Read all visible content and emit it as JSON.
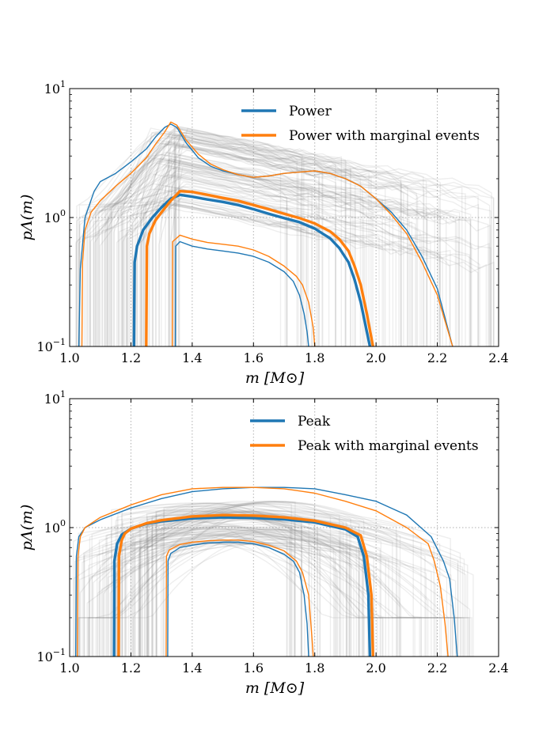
{
  "colors": {
    "blue": "#1f77b4",
    "orange": "#ff7f0e",
    "sample": "#7f7f7f",
    "grid": "#b0b0b0"
  },
  "chart_data": [
    {
      "type": "line",
      "xlabel": "m [M⊙]",
      "ylabel": "pΛ(m)",
      "xlim": [
        1.0,
        2.4
      ],
      "ylim": [
        0.1,
        10
      ],
      "yscale": "log",
      "grid": true,
      "legend_position": "top-right",
      "xticks": [
        "1.0",
        "1.2",
        "1.4",
        "1.6",
        "1.8",
        "2.0",
        "2.2",
        "2.4"
      ],
      "yticks": [
        {
          "base": "10",
          "exp": "1",
          "v": 10
        },
        {
          "base": "10",
          "exp": "0",
          "v": 1
        },
        {
          "base": "10",
          "exp": "−1",
          "v": 0.1
        }
      ],
      "series": [
        {
          "name": "Power",
          "color": "blue",
          "style": "median",
          "x": [
            1.21,
            1.212,
            1.22,
            1.24,
            1.27,
            1.3,
            1.33,
            1.36,
            1.4,
            1.45,
            1.5,
            1.55,
            1.6,
            1.65,
            1.7,
            1.75,
            1.8,
            1.85,
            1.88,
            1.91,
            1.93,
            1.95,
            1.97,
            1.98
          ],
          "y": [
            0.1,
            0.45,
            0.6,
            0.8,
            1.0,
            1.2,
            1.4,
            1.5,
            1.45,
            1.38,
            1.32,
            1.25,
            1.16,
            1.07,
            0.99,
            0.92,
            0.82,
            0.69,
            0.58,
            0.45,
            0.33,
            0.22,
            0.13,
            0.1
          ]
        },
        {
          "name": "Power with marginal events",
          "color": "orange",
          "style": "median",
          "x": [
            1.25,
            1.252,
            1.26,
            1.28,
            1.3,
            1.33,
            1.36,
            1.4,
            1.45,
            1.5,
            1.55,
            1.6,
            1.65,
            1.7,
            1.75,
            1.8,
            1.85,
            1.88,
            1.91,
            1.93,
            1.95,
            1.97,
            1.99
          ],
          "y": [
            0.1,
            0.6,
            0.75,
            0.95,
            1.1,
            1.35,
            1.6,
            1.58,
            1.5,
            1.42,
            1.35,
            1.25,
            1.16,
            1.07,
            0.99,
            0.9,
            0.78,
            0.68,
            0.55,
            0.42,
            0.3,
            0.18,
            0.1
          ]
        },
        {
          "name": "",
          "color": "blue",
          "style": "band",
          "x": [
            1.03,
            1.035,
            1.05,
            1.08,
            1.1,
            1.15,
            1.2,
            1.25,
            1.28,
            1.31,
            1.33,
            1.35,
            1.38,
            1.42,
            1.46,
            1.5,
            1.55,
            1.6,
            1.65,
            1.7,
            1.75,
            1.8,
            1.85,
            1.9,
            1.95,
            2.0,
            2.05,
            2.1,
            2.15,
            2.2,
            2.25
          ],
          "y": [
            0.1,
            0.4,
            1.0,
            1.6,
            1.9,
            2.2,
            2.7,
            3.4,
            4.2,
            5.0,
            5.3,
            5.0,
            3.8,
            2.9,
            2.5,
            2.3,
            2.15,
            2.05,
            2.1,
            2.2,
            2.25,
            2.3,
            2.2,
            2.0,
            1.75,
            1.4,
            1.1,
            0.8,
            0.5,
            0.28,
            0.1
          ]
        },
        {
          "name": "",
          "color": "orange",
          "style": "band",
          "x": [
            1.04,
            1.042,
            1.05,
            1.07,
            1.1,
            1.15,
            1.2,
            1.25,
            1.28,
            1.31,
            1.33,
            1.35,
            1.38,
            1.42,
            1.46,
            1.5,
            1.55,
            1.6,
            1.65,
            1.7,
            1.75,
            1.8,
            1.85,
            1.9,
            1.95,
            2.0,
            2.05,
            2.1,
            2.15,
            2.2,
            2.25
          ],
          "y": [
            0.1,
            0.45,
            0.8,
            1.1,
            1.35,
            1.75,
            2.2,
            2.9,
            3.7,
            4.6,
            5.5,
            5.2,
            4.0,
            3.1,
            2.6,
            2.35,
            2.15,
            2.05,
            2.1,
            2.2,
            2.25,
            2.3,
            2.2,
            2.0,
            1.75,
            1.4,
            1.05,
            0.75,
            0.45,
            0.25,
            0.1
          ]
        },
        {
          "name": "",
          "color": "blue",
          "style": "band",
          "x": [
            1.345,
            1.346,
            1.36,
            1.4,
            1.45,
            1.5,
            1.55,
            1.6,
            1.65,
            1.7,
            1.73,
            1.75,
            1.765,
            1.775,
            1.78
          ],
          "y": [
            0.1,
            0.6,
            0.65,
            0.6,
            0.57,
            0.55,
            0.53,
            0.5,
            0.45,
            0.38,
            0.32,
            0.25,
            0.18,
            0.13,
            0.1
          ]
        },
        {
          "name": "",
          "color": "orange",
          "style": "band",
          "x": [
            1.335,
            1.336,
            1.36,
            1.4,
            1.45,
            1.5,
            1.55,
            1.6,
            1.65,
            1.7,
            1.74,
            1.76,
            1.78,
            1.795,
            1.8
          ],
          "y": [
            0.1,
            0.65,
            0.73,
            0.68,
            0.64,
            0.62,
            0.6,
            0.56,
            0.5,
            0.42,
            0.35,
            0.3,
            0.22,
            0.14,
            0.1
          ]
        }
      ]
    },
    {
      "type": "line",
      "xlabel": "m [M⊙]",
      "ylabel": "pΛ(m)",
      "xlim": [
        1.0,
        2.4
      ],
      "ylim": [
        0.1,
        10
      ],
      "yscale": "log",
      "grid": true,
      "legend_position": "top-right",
      "xticks": [
        "1.0",
        "1.2",
        "1.4",
        "1.6",
        "1.8",
        "2.0",
        "2.2",
        "2.4"
      ],
      "yticks": [
        {
          "base": "10",
          "exp": "1",
          "v": 10
        },
        {
          "base": "10",
          "exp": "0",
          "v": 1
        },
        {
          "base": "10",
          "exp": "−1",
          "v": 0.1
        }
      ],
      "series": [
        {
          "name": "Peak",
          "color": "blue",
          "style": "median",
          "x": [
            1.145,
            1.146,
            1.155,
            1.17,
            1.2,
            1.25,
            1.3,
            1.4,
            1.5,
            1.6,
            1.7,
            1.8,
            1.9,
            1.94,
            1.96,
            1.975,
            1.98
          ],
          "y": [
            0.1,
            0.55,
            0.75,
            0.88,
            0.98,
            1.07,
            1.12,
            1.18,
            1.2,
            1.19,
            1.16,
            1.1,
            0.97,
            0.85,
            0.6,
            0.3,
            0.1
          ]
        },
        {
          "name": "Peak with marginal events",
          "color": "orange",
          "style": "median",
          "x": [
            1.16,
            1.161,
            1.17,
            1.18,
            1.2,
            1.25,
            1.3,
            1.4,
            1.5,
            1.6,
            1.7,
            1.8,
            1.9,
            1.95,
            1.97,
            1.985,
            1.99
          ],
          "y": [
            0.1,
            0.6,
            0.8,
            0.9,
            0.98,
            1.08,
            1.14,
            1.22,
            1.25,
            1.24,
            1.2,
            1.13,
            1.0,
            0.87,
            0.6,
            0.3,
            0.1
          ]
        },
        {
          "name": "",
          "color": "blue",
          "style": "band",
          "x": [
            1.02,
            1.022,
            1.03,
            1.05,
            1.1,
            1.2,
            1.3,
            1.4,
            1.5,
            1.6,
            1.7,
            1.8,
            1.9,
            2.0,
            2.1,
            2.18,
            2.22,
            2.24,
            2.255,
            2.265
          ],
          "y": [
            0.1,
            0.6,
            0.85,
            1.0,
            1.15,
            1.42,
            1.68,
            1.9,
            2.0,
            2.05,
            2.05,
            2.0,
            1.8,
            1.6,
            1.25,
            0.85,
            0.55,
            0.4,
            0.2,
            0.1
          ]
        },
        {
          "name": "",
          "color": "orange",
          "style": "band",
          "x": [
            1.025,
            1.027,
            1.035,
            1.05,
            1.1,
            1.2,
            1.3,
            1.4,
            1.5,
            1.6,
            1.7,
            1.8,
            1.9,
            2.0,
            2.1,
            2.17,
            2.19,
            2.21,
            2.225,
            2.235
          ],
          "y": [
            0.1,
            0.6,
            0.85,
            1.0,
            1.2,
            1.5,
            1.8,
            2.0,
            2.05,
            2.05,
            2.0,
            1.85,
            1.6,
            1.35,
            1.0,
            0.75,
            0.55,
            0.35,
            0.18,
            0.1
          ]
        },
        {
          "name": "",
          "color": "blue",
          "style": "band",
          "x": [
            1.32,
            1.321,
            1.33,
            1.36,
            1.4,
            1.45,
            1.5,
            1.55,
            1.6,
            1.65,
            1.7,
            1.73,
            1.75,
            1.765,
            1.775,
            1.78
          ],
          "y": [
            0.1,
            0.55,
            0.63,
            0.7,
            0.73,
            0.76,
            0.77,
            0.77,
            0.75,
            0.7,
            0.62,
            0.55,
            0.45,
            0.3,
            0.18,
            0.1
          ]
        },
        {
          "name": "",
          "color": "orange",
          "style": "band",
          "x": [
            1.315,
            1.316,
            1.325,
            1.36,
            1.4,
            1.45,
            1.5,
            1.55,
            1.6,
            1.65,
            1.7,
            1.74,
            1.76,
            1.78,
            1.79,
            1.795
          ],
          "y": [
            0.1,
            0.6,
            0.67,
            0.74,
            0.77,
            0.79,
            0.8,
            0.8,
            0.78,
            0.73,
            0.66,
            0.55,
            0.45,
            0.3,
            0.15,
            0.1
          ]
        }
      ]
    }
  ]
}
